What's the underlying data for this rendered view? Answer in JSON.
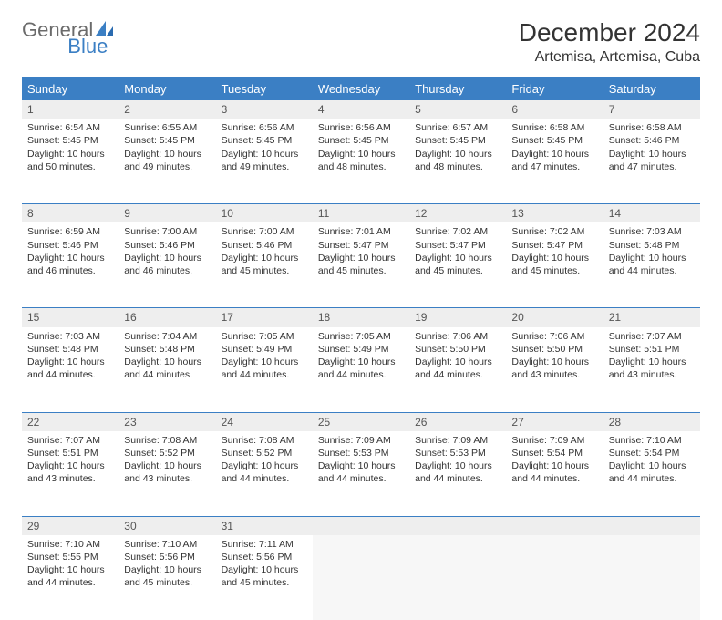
{
  "logo": {
    "text1": "General",
    "text2": "Blue"
  },
  "title": "December 2024",
  "location": "Artemisa, Artemisa, Cuba",
  "day_headers": [
    "Sunday",
    "Monday",
    "Tuesday",
    "Wednesday",
    "Thursday",
    "Friday",
    "Saturday"
  ],
  "colors": {
    "header_bg": "#3b7fc4",
    "header_text": "#ffffff",
    "daynum_bg": "#eeeeee",
    "border": "#3b7fc4",
    "page_bg": "#ffffff",
    "text": "#333333",
    "logo_gray": "#6b6b6b",
    "logo_blue": "#3b7fc4"
  },
  "fonts": {
    "title_size_pt": 21,
    "location_size_pt": 12,
    "header_size_pt": 10,
    "cell_size_pt": 8,
    "daynum_size_pt": 9
  },
  "weeks": [
    [
      {
        "n": "1",
        "sr": "6:54 AM",
        "ss": "5:45 PM",
        "dl": "10 hours and 50 minutes."
      },
      {
        "n": "2",
        "sr": "6:55 AM",
        "ss": "5:45 PM",
        "dl": "10 hours and 49 minutes."
      },
      {
        "n": "3",
        "sr": "6:56 AM",
        "ss": "5:45 PM",
        "dl": "10 hours and 49 minutes."
      },
      {
        "n": "4",
        "sr": "6:56 AM",
        "ss": "5:45 PM",
        "dl": "10 hours and 48 minutes."
      },
      {
        "n": "5",
        "sr": "6:57 AM",
        "ss": "5:45 PM",
        "dl": "10 hours and 48 minutes."
      },
      {
        "n": "6",
        "sr": "6:58 AM",
        "ss": "5:45 PM",
        "dl": "10 hours and 47 minutes."
      },
      {
        "n": "7",
        "sr": "6:58 AM",
        "ss": "5:46 PM",
        "dl": "10 hours and 47 minutes."
      }
    ],
    [
      {
        "n": "8",
        "sr": "6:59 AM",
        "ss": "5:46 PM",
        "dl": "10 hours and 46 minutes."
      },
      {
        "n": "9",
        "sr": "7:00 AM",
        "ss": "5:46 PM",
        "dl": "10 hours and 46 minutes."
      },
      {
        "n": "10",
        "sr": "7:00 AM",
        "ss": "5:46 PM",
        "dl": "10 hours and 45 minutes."
      },
      {
        "n": "11",
        "sr": "7:01 AM",
        "ss": "5:47 PM",
        "dl": "10 hours and 45 minutes."
      },
      {
        "n": "12",
        "sr": "7:02 AM",
        "ss": "5:47 PM",
        "dl": "10 hours and 45 minutes."
      },
      {
        "n": "13",
        "sr": "7:02 AM",
        "ss": "5:47 PM",
        "dl": "10 hours and 45 minutes."
      },
      {
        "n": "14",
        "sr": "7:03 AM",
        "ss": "5:48 PM",
        "dl": "10 hours and 44 minutes."
      }
    ],
    [
      {
        "n": "15",
        "sr": "7:03 AM",
        "ss": "5:48 PM",
        "dl": "10 hours and 44 minutes."
      },
      {
        "n": "16",
        "sr": "7:04 AM",
        "ss": "5:48 PM",
        "dl": "10 hours and 44 minutes."
      },
      {
        "n": "17",
        "sr": "7:05 AM",
        "ss": "5:49 PM",
        "dl": "10 hours and 44 minutes."
      },
      {
        "n": "18",
        "sr": "7:05 AM",
        "ss": "5:49 PM",
        "dl": "10 hours and 44 minutes."
      },
      {
        "n": "19",
        "sr": "7:06 AM",
        "ss": "5:50 PM",
        "dl": "10 hours and 44 minutes."
      },
      {
        "n": "20",
        "sr": "7:06 AM",
        "ss": "5:50 PM",
        "dl": "10 hours and 43 minutes."
      },
      {
        "n": "21",
        "sr": "7:07 AM",
        "ss": "5:51 PM",
        "dl": "10 hours and 43 minutes."
      }
    ],
    [
      {
        "n": "22",
        "sr": "7:07 AM",
        "ss": "5:51 PM",
        "dl": "10 hours and 43 minutes."
      },
      {
        "n": "23",
        "sr": "7:08 AM",
        "ss": "5:52 PM",
        "dl": "10 hours and 43 minutes."
      },
      {
        "n": "24",
        "sr": "7:08 AM",
        "ss": "5:52 PM",
        "dl": "10 hours and 44 minutes."
      },
      {
        "n": "25",
        "sr": "7:09 AM",
        "ss": "5:53 PM",
        "dl": "10 hours and 44 minutes."
      },
      {
        "n": "26",
        "sr": "7:09 AM",
        "ss": "5:53 PM",
        "dl": "10 hours and 44 minutes."
      },
      {
        "n": "27",
        "sr": "7:09 AM",
        "ss": "5:54 PM",
        "dl": "10 hours and 44 minutes."
      },
      {
        "n": "28",
        "sr": "7:10 AM",
        "ss": "5:54 PM",
        "dl": "10 hours and 44 minutes."
      }
    ],
    [
      {
        "n": "29",
        "sr": "7:10 AM",
        "ss": "5:55 PM",
        "dl": "10 hours and 44 minutes."
      },
      {
        "n": "30",
        "sr": "7:10 AM",
        "ss": "5:56 PM",
        "dl": "10 hours and 45 minutes."
      },
      {
        "n": "31",
        "sr": "7:11 AM",
        "ss": "5:56 PM",
        "dl": "10 hours and 45 minutes."
      },
      null,
      null,
      null,
      null
    ]
  ],
  "labels": {
    "sunrise": "Sunrise: ",
    "sunset": "Sunset: ",
    "daylight": "Daylight: "
  }
}
